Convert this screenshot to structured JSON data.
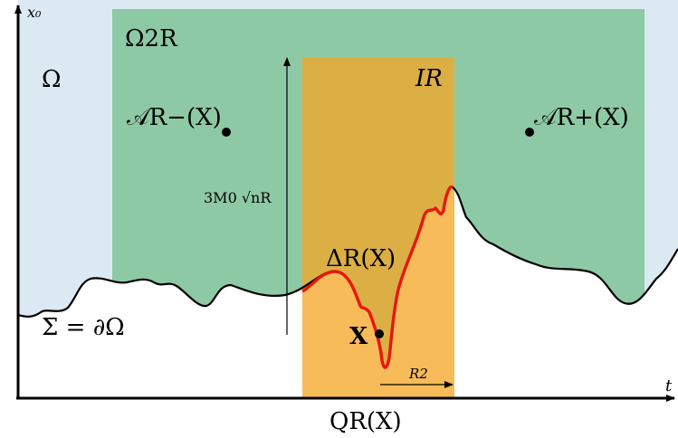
{
  "axes": {
    "vertical_label": "x₀",
    "horizontal_label": "t"
  },
  "regions": {
    "domain_label": "Ω",
    "double_region_label": "Ω2R",
    "interval_label": "IR",
    "boundary_label": "Σ = ∂Ω"
  },
  "points": {
    "base_point": "X",
    "corkscrew_minus": "𝒜R−(X)",
    "corkscrew_plus": "𝒜R+(X)"
  },
  "annotations": {
    "height": "3M0 √nR",
    "width": "R2",
    "surface_ball": "ΔR(X)",
    "cylinder": "QR(X)"
  },
  "colors": {
    "domain": "#dbe9f2",
    "double_region": "#8ec9a5",
    "interval": "#f7bb5a",
    "overlap": "#dbaf44",
    "surface_ball": "#e8160c"
  }
}
